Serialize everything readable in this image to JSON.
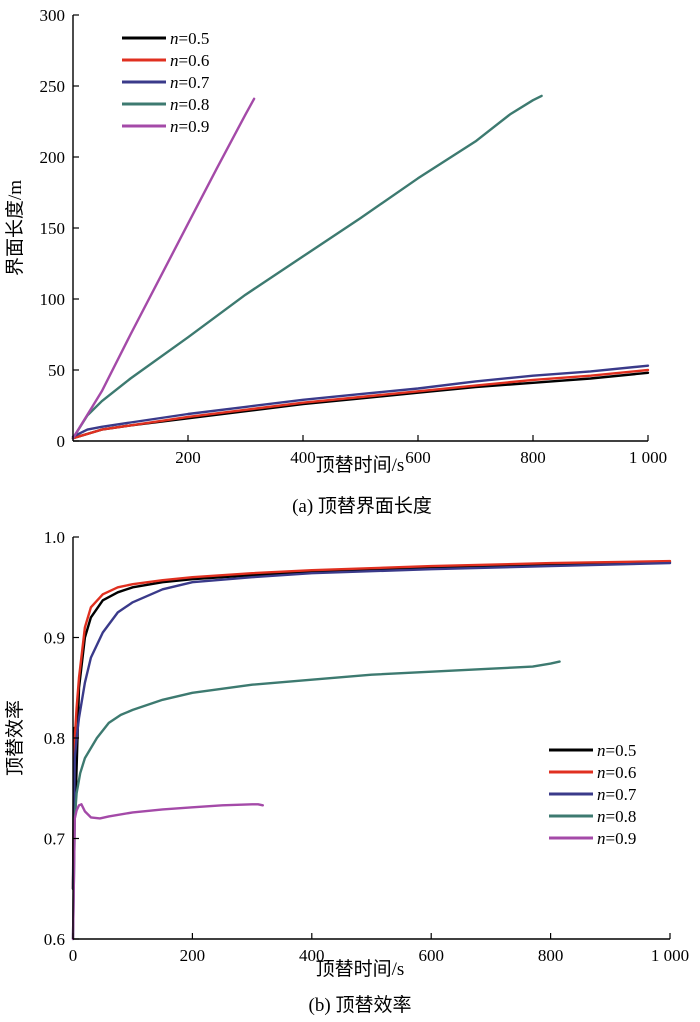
{
  "chart_data": [
    {
      "type": "line",
      "caption": "(a) 顶替界面长度",
      "title": "",
      "xlabel": "顶替时间/s",
      "ylabel": "界面长度/m",
      "xlim": [
        0,
        1000
      ],
      "ylim": [
        0,
        300
      ],
      "xticks": [
        200,
        400,
        600,
        800,
        1000
      ],
      "xtick_labels": [
        "200",
        "400",
        "600",
        "800",
        "1 000"
      ],
      "yticks": [
        0,
        50,
        100,
        150,
        200,
        250,
        300
      ],
      "ytick_labels": [
        "0",
        "50",
        "100",
        "150",
        "200",
        "250",
        "300"
      ],
      "legend_position": "top-left",
      "grid": false,
      "series": [
        {
          "name": "n=0.5",
          "symbol": "n",
          "value_text": "=0.5",
          "color": "#000000",
          "points": [
            [
              0,
              2
            ],
            [
              50,
              8
            ],
            [
              100,
              11
            ],
            [
              200,
              16
            ],
            [
              300,
              21
            ],
            [
              400,
              26
            ],
            [
              500,
              30
            ],
            [
              600,
              34
            ],
            [
              700,
              38
            ],
            [
              800,
              41
            ],
            [
              900,
              44
            ],
            [
              1000,
              48
            ]
          ]
        },
        {
          "name": "n=0.6",
          "symbol": "n",
          "value_text": "=0.6",
          "color": "#e03020",
          "points": [
            [
              0,
              2
            ],
            [
              50,
              8
            ],
            [
              100,
              11
            ],
            [
              200,
              17
            ],
            [
              300,
              22
            ],
            [
              400,
              27
            ],
            [
              500,
              31
            ],
            [
              600,
              35
            ],
            [
              700,
              39
            ],
            [
              800,
              43
            ],
            [
              900,
              46
            ],
            [
              1000,
              50
            ]
          ]
        },
        {
          "name": "n=0.7",
          "symbol": "n",
          "value_text": "=0.7",
          "color": "#3a3a8a",
          "points": [
            [
              0,
              3
            ],
            [
              25,
              8
            ],
            [
              50,
              10
            ],
            [
              100,
              13
            ],
            [
              200,
              19
            ],
            [
              300,
              24
            ],
            [
              400,
              29
            ],
            [
              500,
              33
            ],
            [
              600,
              37
            ],
            [
              700,
              42
            ],
            [
              800,
              46
            ],
            [
              900,
              49
            ],
            [
              1000,
              53
            ]
          ]
        },
        {
          "name": "n=0.8",
          "symbol": "n",
          "value_text": "=0.8",
          "color": "#3d7a70",
          "points": [
            [
              0,
              2
            ],
            [
              25,
              18
            ],
            [
              50,
              28
            ],
            [
              100,
              44
            ],
            [
              200,
              73
            ],
            [
              300,
              103
            ],
            [
              400,
              130
            ],
            [
              500,
              157
            ],
            [
              600,
              185
            ],
            [
              700,
              211
            ],
            [
              760,
              230
            ],
            [
              800,
              240
            ],
            [
              815,
              243
            ]
          ]
        },
        {
          "name": "n=0.9",
          "symbol": "n",
          "value_text": "=0.9",
          "color": "#a44aa8",
          "points": [
            [
              0,
              2
            ],
            [
              50,
              35
            ],
            [
              100,
              75
            ],
            [
              150,
              114
            ],
            [
              200,
              153
            ],
            [
              250,
              192
            ],
            [
              300,
              230
            ],
            [
              315,
              241
            ]
          ]
        }
      ]
    },
    {
      "type": "line",
      "caption": "(b) 顶替效率",
      "title": "",
      "xlabel": "顶替时间/s",
      "ylabel": "顶替效率",
      "xlim": [
        0,
        1000
      ],
      "ylim": [
        0.6,
        1.0
      ],
      "xticks": [
        0,
        200,
        400,
        600,
        800,
        1000
      ],
      "xtick_labels": [
        "0",
        "200",
        "400",
        "600",
        "800",
        "1 000"
      ],
      "yticks": [
        0.6,
        0.7,
        0.8,
        0.9,
        1.0
      ],
      "ytick_labels": [
        "0.6",
        "0.7",
        "0.8",
        "0.9",
        "1.0"
      ],
      "legend_position": "center-right",
      "grid": false,
      "series": [
        {
          "name": "n=0.5",
          "symbol": "n",
          "value_text": "=0.5",
          "color": "#000000",
          "points": [
            [
              0,
              0.65
            ],
            [
              2,
              0.81
            ],
            [
              4,
              0.73
            ],
            [
              6,
              0.77
            ],
            [
              10,
              0.85
            ],
            [
              20,
              0.9
            ],
            [
              30,
              0.92
            ],
            [
              50,
              0.937
            ],
            [
              75,
              0.945
            ],
            [
              100,
              0.95
            ],
            [
              150,
              0.955
            ],
            [
              200,
              0.958
            ],
            [
              300,
              0.962
            ],
            [
              400,
              0.965
            ],
            [
              600,
              0.97
            ],
            [
              800,
              0.973
            ],
            [
              1000,
              0.975
            ]
          ]
        },
        {
          "name": "n=0.6",
          "symbol": "n",
          "value_text": "=0.6",
          "color": "#e03020",
          "points": [
            [
              0,
              0.65
            ],
            [
              3,
              0.8
            ],
            [
              6,
              0.83
            ],
            [
              10,
              0.86
            ],
            [
              20,
              0.91
            ],
            [
              30,
              0.93
            ],
            [
              50,
              0.943
            ],
            [
              75,
              0.95
            ],
            [
              100,
              0.953
            ],
            [
              150,
              0.957
            ],
            [
              200,
              0.96
            ],
            [
              300,
              0.964
            ],
            [
              400,
              0.967
            ],
            [
              600,
              0.971
            ],
            [
              800,
              0.974
            ],
            [
              1000,
              0.976
            ]
          ]
        },
        {
          "name": "n=0.7",
          "symbol": "n",
          "value_text": "=0.7",
          "color": "#3a3a8a",
          "points": [
            [
              0,
              0.65
            ],
            [
              3,
              0.78
            ],
            [
              6,
              0.8
            ],
            [
              10,
              0.82
            ],
            [
              20,
              0.855
            ],
            [
              30,
              0.88
            ],
            [
              50,
              0.905
            ],
            [
              75,
              0.925
            ],
            [
              100,
              0.935
            ],
            [
              150,
              0.948
            ],
            [
              200,
              0.955
            ],
            [
              300,
              0.96
            ],
            [
              400,
              0.964
            ],
            [
              600,
              0.968
            ],
            [
              800,
              0.971
            ],
            [
              1000,
              0.974
            ]
          ]
        },
        {
          "name": "n=0.8",
          "symbol": "n",
          "value_text": "=0.8",
          "color": "#3d7a70",
          "points": [
            [
              0,
              0.6
            ],
            [
              3,
              0.72
            ],
            [
              6,
              0.745
            ],
            [
              12,
              0.765
            ],
            [
              20,
              0.78
            ],
            [
              40,
              0.8
            ],
            [
              60,
              0.815
            ],
            [
              80,
              0.823
            ],
            [
              100,
              0.828
            ],
            [
              150,
              0.838
            ],
            [
              200,
              0.845
            ],
            [
              300,
              0.853
            ],
            [
              400,
              0.858
            ],
            [
              500,
              0.863
            ],
            [
              600,
              0.866
            ],
            [
              700,
              0.869
            ],
            [
              770,
              0.871
            ],
            [
              800,
              0.874
            ],
            [
              815,
              0.876
            ]
          ]
        },
        {
          "name": "n=0.9",
          "symbol": "n",
          "value_text": "=0.9",
          "color": "#a44aa8",
          "points": [
            [
              0,
              0.6
            ],
            [
              3,
              0.72
            ],
            [
              6,
              0.728
            ],
            [
              10,
              0.733
            ],
            [
              14,
              0.734
            ],
            [
              20,
              0.727
            ],
            [
              30,
              0.721
            ],
            [
              45,
              0.72
            ],
            [
              60,
              0.722
            ],
            [
              100,
              0.726
            ],
            [
              150,
              0.729
            ],
            [
              200,
              0.731
            ],
            [
              250,
              0.733
            ],
            [
              300,
              0.734
            ],
            [
              310,
              0.734
            ],
            [
              318,
              0.733
            ]
          ]
        }
      ]
    }
  ]
}
